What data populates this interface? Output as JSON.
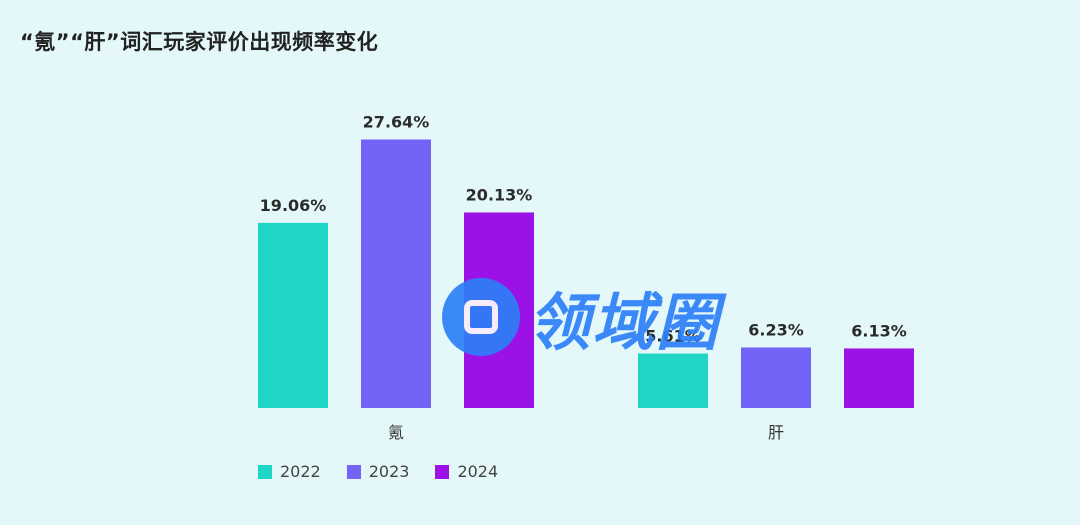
{
  "title": "“氪”“肝”词汇玩家评价出现频率变化",
  "watermark": "领域圈",
  "colors": {
    "2022": "#1fd6c6",
    "2023": "#7463f7",
    "2024": "#9b12e6",
    "background": "#e4f8f9"
  },
  "chart_data": {
    "type": "bar",
    "title": "“氪”“肝”词汇玩家评价出现频率变化",
    "categories": [
      "氪",
      "肝"
    ],
    "series": [
      {
        "name": "2022",
        "values": [
          19.06,
          5.61
        ],
        "labels": [
          "19.06%",
          "5.61%"
        ]
      },
      {
        "name": "2023",
        "values": [
          27.64,
          6.23
        ],
        "labels": [
          "27.64%",
          "6.23%"
        ]
      },
      {
        "name": "2024",
        "values": [
          20.13,
          6.13
        ],
        "labels": [
          "20.13%",
          "6.13%"
        ]
      }
    ],
    "ylim": [
      0,
      30
    ],
    "grid": false,
    "legend": "bottom-left"
  }
}
